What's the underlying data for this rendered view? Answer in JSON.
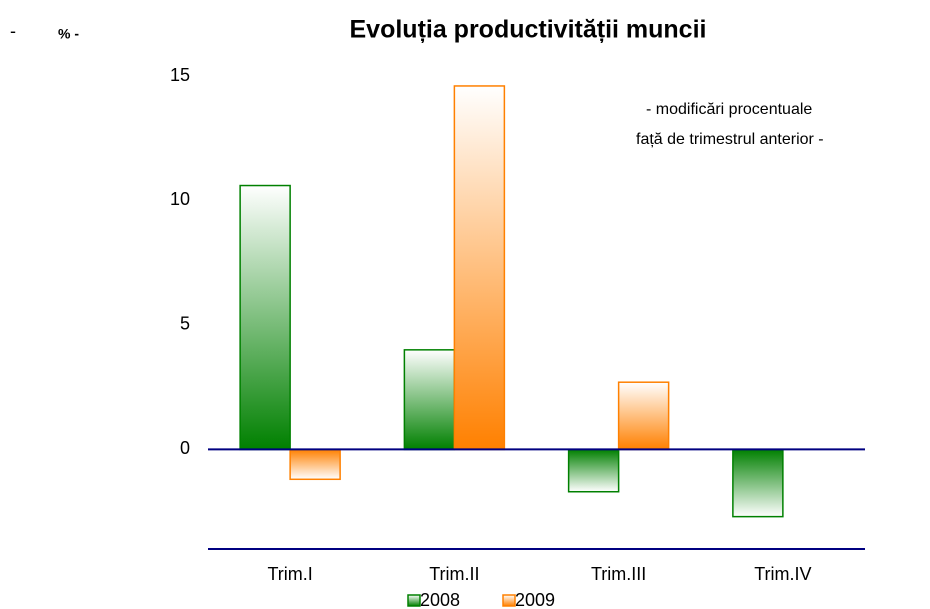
{
  "chart_data": {
    "type": "bar",
    "title": "Evoluția productivității muncii",
    "corner_mark": "-",
    "unit_label": "% -",
    "annotation": [
      "- modificări procentuale",
      "față de trimestrul anterior -"
    ],
    "categories": [
      "Trim.I",
      "Trim.II",
      "Trim.III",
      "Trim.IV"
    ],
    "series": [
      {
        "name": "2008",
        "color": "#008000",
        "values": [
          10.6,
          4.0,
          -1.7,
          -2.7
        ]
      },
      {
        "name": "2009",
        "color": "#ff8000",
        "values": [
          -1.2,
          14.6,
          2.7,
          null
        ]
      }
    ],
    "ylim": [
      -4,
      15
    ],
    "yticks": [
      0,
      5,
      10,
      15
    ],
    "grid": false,
    "legend": "bottom"
  }
}
